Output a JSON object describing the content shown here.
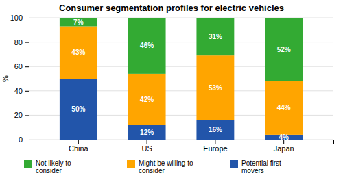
{
  "chart_data": {
    "type": "bar",
    "stacked": true,
    "title": "Consumer segmentation profiles for electric vehicles",
    "y_label": "%",
    "categories": [
      "China",
      "US",
      "Europe",
      "Japan"
    ],
    "series": [
      {
        "name": "Potential first\nmovers",
        "color": "#2255AA",
        "values": [
          50,
          12,
          16,
          4
        ],
        "value_labels": [
          "50%",
          "12%",
          "16%",
          "4%"
        ]
      },
      {
        "name": "Might be willing to\nconsider",
        "color": "#FFA500",
        "values": [
          43,
          42,
          53,
          44
        ],
        "value_labels": [
          "43%",
          "42%",
          "53%",
          "44%"
        ]
      },
      {
        "name": "Not likely to\nconsider",
        "color": "#33AA33",
        "values": [
          7,
          46,
          31,
          52
        ],
        "value_labels": [
          "7%",
          "46%",
          "31%",
          "52%"
        ]
      }
    ],
    "ylim": [
      0,
      100
    ],
    "yticks": [
      0,
      20,
      40,
      60,
      80,
      100
    ],
    "grid": true,
    "data_labels": true,
    "legend": "bottom"
  }
}
